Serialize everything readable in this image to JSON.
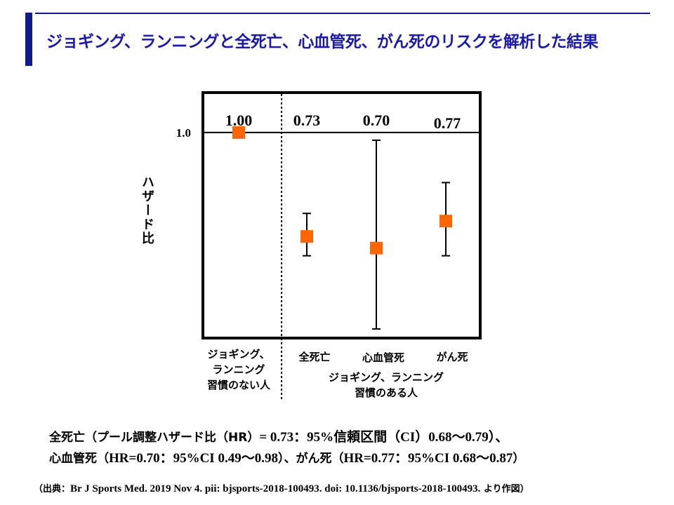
{
  "title": "ジョギング、ランニングと全死亡、心血管死、がん死のリスクを解析した結果",
  "chart_data": {
    "type": "scatter",
    "ylabel": "ハザード比",
    "yticks": [
      {
        "value": 1.0,
        "label": "1.0"
      }
    ],
    "ylim": [
      0.47,
      1.1
    ],
    "categories": [
      "ジョギング、ランニング習慣のない人",
      "全死亡",
      "心血管死",
      "がん死"
    ],
    "points": [
      {
        "category": "reference",
        "value": 1.0,
        "label": "1.00"
      },
      {
        "category": "全死亡",
        "value": 0.73,
        "ci": [
          0.68,
          0.79
        ],
        "label": "0.73"
      },
      {
        "category": "心血管死",
        "value": 0.7,
        "ci": [
          0.49,
          0.98
        ],
        "label": "0.70"
      },
      {
        "category": "がん死",
        "value": 0.77,
        "ci": [
          0.68,
          0.87
        ],
        "label": "0.77"
      }
    ],
    "reference_line": 1.0,
    "marker_color": "#ff6600"
  },
  "groups": {
    "none_line1": "ジョギング、",
    "none_line2": "ランニング",
    "none_line3": "習慣のない人",
    "cat1": "全死亡",
    "cat2": "心血管死",
    "cat3": "がん死",
    "habit_line1": "ジョギング、ランニング",
    "habit_line2": "習慣のある人"
  },
  "notes": {
    "line1_a": "全死亡（プール調整ハザード比（HR）",
    "line1_b": "= 0.73：95%信頼区間（CI）0.68〜0.79）、",
    "line2_a": "心血管死（",
    "line2_b": "HR=0.70：95%CI 0.49〜0.98",
    "line2_c": "）、がん死（",
    "line2_d": "HR=0.77：95%CI 0.68〜0.87",
    "line2_e": "）",
    "source_open": "（出典：",
    "source_ref": "Br J Sports Med. 2019 Nov 4. pii: bjsports-2018-100493. doi: 10.1136/bjsports-2018-100493.",
    "source_close": " より作図）"
  }
}
